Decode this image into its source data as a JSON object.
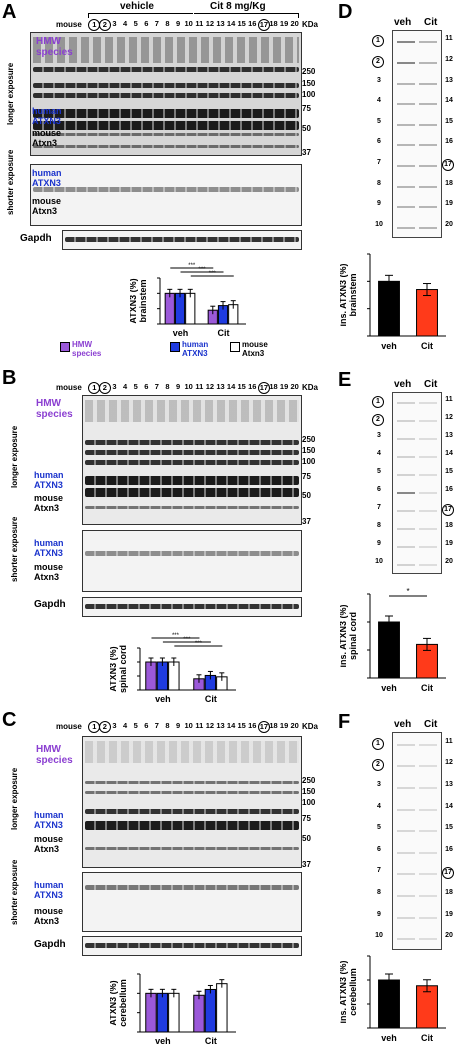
{
  "panels": [
    {
      "label": "A",
      "mouse_label": "mouse",
      "group_vehicle": "vehicle",
      "group_cit": "Cit 8 mg/Kg",
      "kda": "KDa",
      "lanes": [
        "1",
        "2",
        "3",
        "4",
        "5",
        "6",
        "7",
        "8",
        "9",
        "10",
        "11",
        "12",
        "13",
        "14",
        "15",
        "16",
        "17",
        "18",
        "19",
        "20"
      ],
      "hmw": "HMW species",
      "longer": "longer exposure",
      "shorter": "shorter exposure",
      "human": "human ATXN3",
      "mouse": "mouse Atxn3",
      "gapdh": "Gapdh",
      "markers": [
        "250",
        "150",
        "100",
        "75",
        "50",
        "37"
      ],
      "legend": {
        "hmw": "HMW species",
        "human": "human ATXN3",
        "mouse": "mouse Atxn3"
      }
    },
    {
      "label": "B",
      "mouse_label": "mouse",
      "kda": "KDa",
      "lanes": [
        "1",
        "2",
        "3",
        "4",
        "5",
        "6",
        "7",
        "8",
        "9",
        "10",
        "11",
        "12",
        "13",
        "14",
        "15",
        "16",
        "17",
        "18",
        "19",
        "20"
      ],
      "hmw": "HMW species",
      "longer": "longer exposure",
      "shorter": "shorter exposure",
      "human": "human ATXN3",
      "mouse": "mouse Atxn3",
      "gapdh": "Gapdh",
      "markers": [
        "250",
        "150",
        "100",
        "75",
        "50",
        "37"
      ]
    },
    {
      "label": "C",
      "mouse_label": "mouse",
      "kda": "KDa",
      "lanes": [
        "1",
        "2",
        "3",
        "4",
        "5",
        "6",
        "7",
        "8",
        "9",
        "10",
        "11",
        "12",
        "13",
        "14",
        "15",
        "16",
        "17",
        "18",
        "19",
        "20"
      ],
      "hmw": "HMW species",
      "longer": "longer exposure",
      "shorter": "shorter exposure",
      "human": "human ATXN3",
      "mouse": "mouse Atxn3",
      "gapdh": "Gapdh",
      "markers": [
        "250",
        "150",
        "100",
        "75",
        "50",
        "37"
      ]
    },
    {
      "label": "D",
      "veh": "veh",
      "cit": "Cit",
      "left_nums": [
        "1",
        "2",
        "3",
        "4",
        "5",
        "6",
        "7",
        "8",
        "9",
        "10"
      ],
      "right_nums": [
        "11",
        "12",
        "13",
        "14",
        "15",
        "16",
        "17",
        "18",
        "19",
        "20"
      ]
    },
    {
      "label": "E",
      "veh": "veh",
      "cit": "Cit",
      "left_nums": [
        "1",
        "2",
        "3",
        "4",
        "5",
        "6",
        "7",
        "8",
        "9",
        "10"
      ],
      "right_nums": [
        "11",
        "12",
        "13",
        "14",
        "15",
        "16",
        "17",
        "18",
        "19",
        "20"
      ]
    },
    {
      "label": "F",
      "veh": "veh",
      "cit": "Cit",
      "left_nums": [
        "1",
        "2",
        "3",
        "4",
        "5",
        "6",
        "7",
        "8",
        "9",
        "10"
      ],
      "right_nums": [
        "11",
        "12",
        "13",
        "14",
        "15",
        "16",
        "17",
        "18",
        "19",
        "20"
      ]
    }
  ],
  "colors": {
    "hmw": "#9b59d9",
    "human": "#1f3be0",
    "mouse": "#ffffff",
    "veh": "#000000",
    "cit": "#ff3a1a"
  },
  "chart_data": [
    {
      "type": "bar",
      "panel": "A",
      "ylabel": "ATXN3 (%) brainstem",
      "categories": [
        "veh",
        "Cit"
      ],
      "series": [
        {
          "name": "HMW species",
          "values": [
            100,
            45
          ]
        },
        {
          "name": "human ATXN3",
          "values": [
            100,
            60
          ]
        },
        {
          "name": "mouse Atxn3",
          "values": [
            100,
            63
          ]
        }
      ],
      "ylim": [
        0,
        150
      ],
      "significance": [
        "***",
        "***",
        "***"
      ]
    },
    {
      "type": "bar",
      "panel": "B",
      "ylabel": "ATXN3 (%) spinal cord",
      "categories": [
        "veh",
        "Cit"
      ],
      "series": [
        {
          "name": "HMW species",
          "values": [
            100,
            40
          ]
        },
        {
          "name": "human ATXN3",
          "values": [
            100,
            52
          ]
        },
        {
          "name": "mouse Atxn3",
          "values": [
            100,
            47
          ]
        }
      ],
      "ylim": [
        0,
        150
      ],
      "significance": [
        "***",
        "***",
        "***"
      ]
    },
    {
      "type": "bar",
      "panel": "C",
      "ylabel": "ATXN3 (%) cerebellum",
      "categories": [
        "veh",
        "Cit"
      ],
      "series": [
        {
          "name": "HMW species",
          "values": [
            100,
            95
          ]
        },
        {
          "name": "human ATXN3",
          "values": [
            100,
            110
          ]
        },
        {
          "name": "mouse Atxn3",
          "values": [
            100,
            125
          ]
        }
      ],
      "ylim": [
        0,
        150
      ]
    },
    {
      "type": "bar",
      "panel": "D",
      "ylabel": "ins. ATXN3 (%) brainstem",
      "categories": [
        "veh",
        "Cit"
      ],
      "values": [
        100,
        85
      ],
      "ylim": [
        0,
        150
      ]
    },
    {
      "type": "bar",
      "panel": "E",
      "ylabel": "ins. ATXN3 (%) spinal cord",
      "categories": [
        "veh",
        "Cit"
      ],
      "values": [
        100,
        60
      ],
      "ylim": [
        0,
        150
      ],
      "significance": [
        "*"
      ]
    },
    {
      "type": "bar",
      "panel": "F",
      "ylabel": "ins. ATXN3 (%) cerebellum",
      "categories": [
        "veh",
        "Cit"
      ],
      "values": [
        100,
        88
      ],
      "ylim": [
        0,
        150
      ]
    }
  ]
}
